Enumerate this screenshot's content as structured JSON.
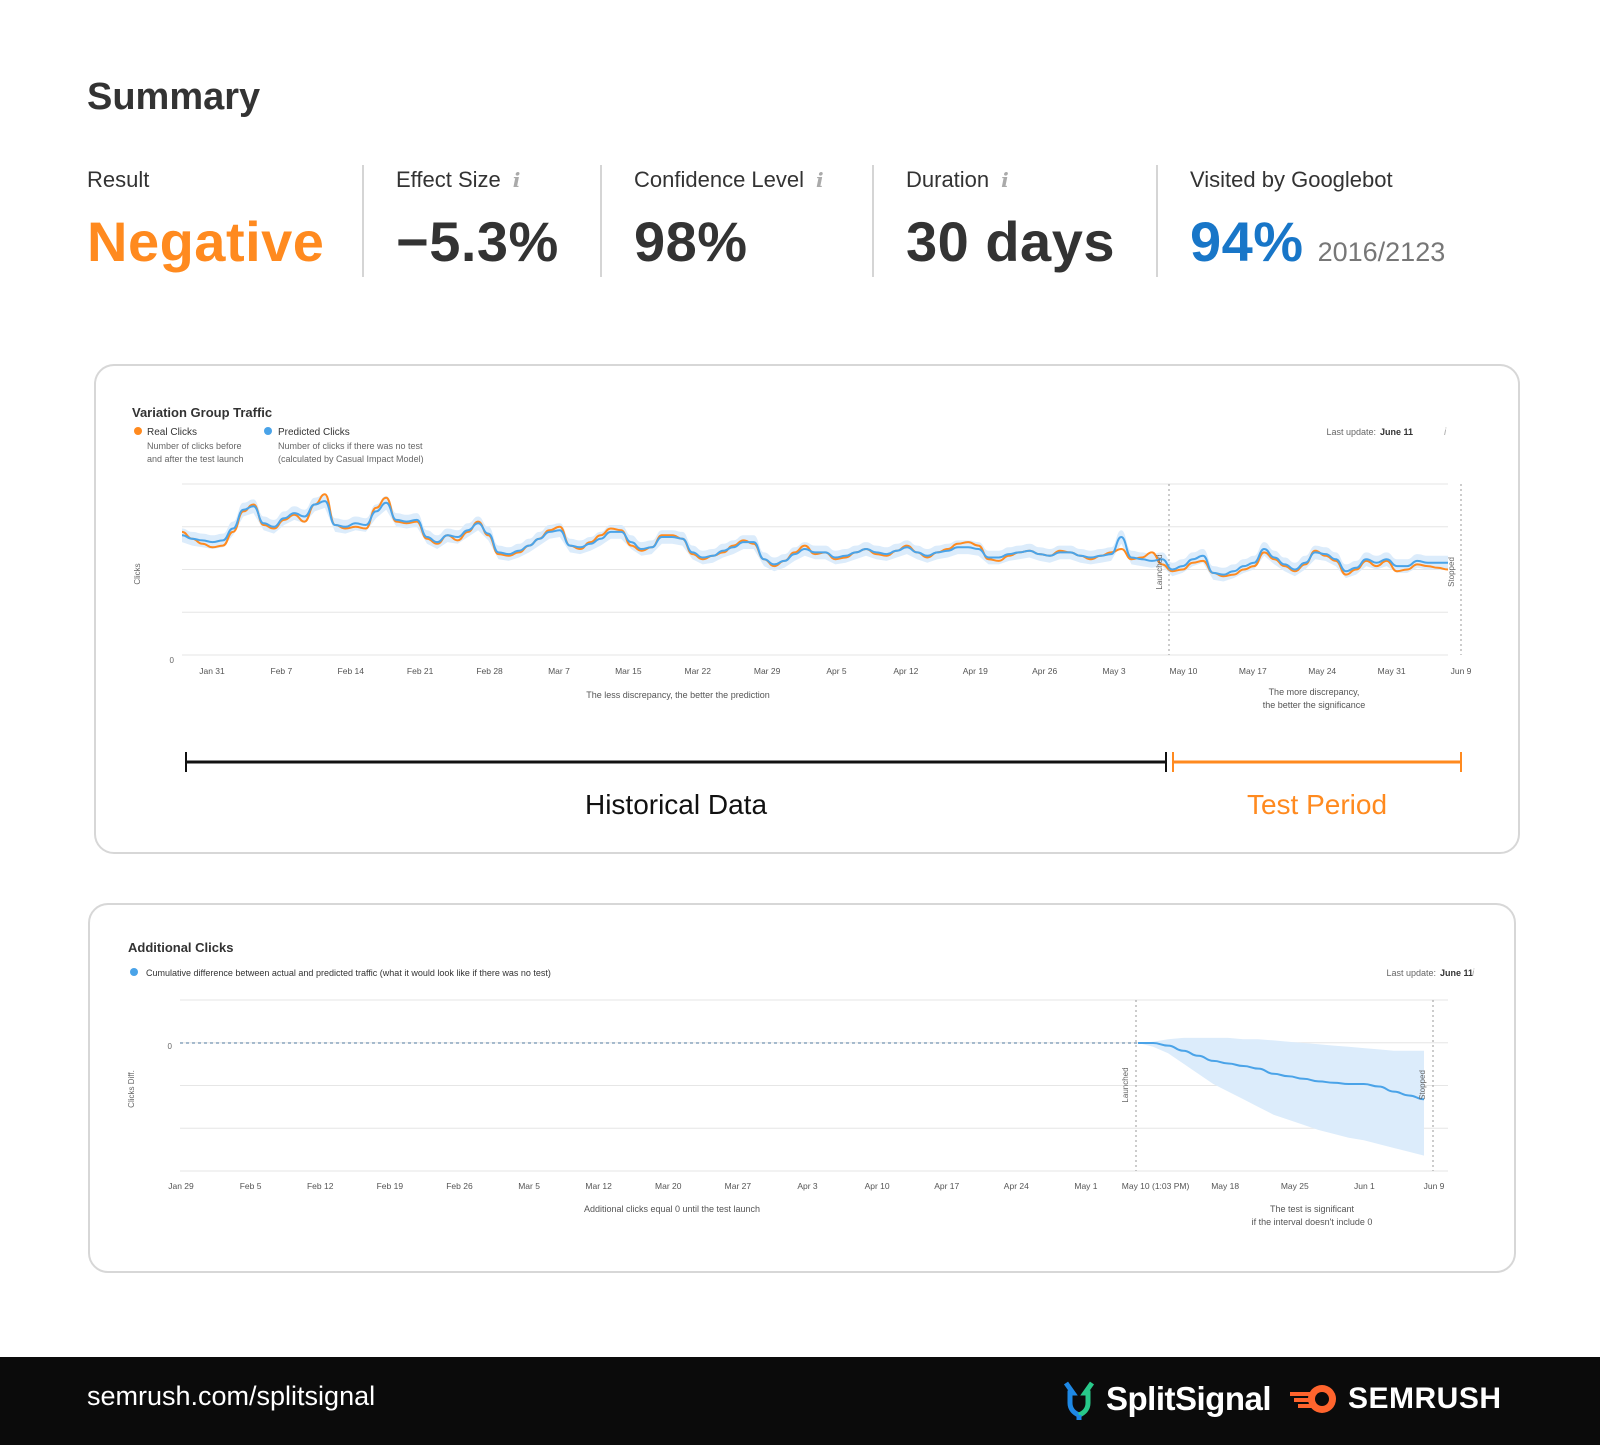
{
  "summary": {
    "title": "Summary",
    "metrics": [
      {
        "label": "Result",
        "value": "Negative",
        "info": false,
        "color": "#ff8a1f"
      },
      {
        "label": "Effect Size",
        "value": "−5.3%",
        "info": true,
        "color": "#333333"
      },
      {
        "label": "Confidence Level",
        "value": "98%",
        "info": true,
        "color": "#333333"
      },
      {
        "label": "Duration",
        "value": "30 days",
        "info": true,
        "color": "#333333"
      },
      {
        "label": "Visited by Googlebot",
        "value": "94%",
        "sub_value": "2016/2123",
        "info": false,
        "color": "#1876c8"
      }
    ],
    "info_glyph": "i"
  },
  "colors": {
    "orange": "#ff8a1f",
    "blue": "#4aa3e8",
    "band": "#dcecfb",
    "footer_bg": "#0b0b0b"
  },
  "icons": [
    "info-icon",
    "splitsignal-logo-icon",
    "semrush-logo-icon"
  ],
  "chart_data": [
    {
      "type": "line",
      "title": "Variation Group Traffic",
      "legend": [
        {
          "name": "Real Clicks",
          "desc_lines": [
            "Number of clicks before",
            "and after the test launch"
          ],
          "color": "#ff8a1f"
        },
        {
          "name": "Predicted Clicks",
          "desc_lines": [
            "Number of clicks if there was no test",
            "(calculated by Casual Impact Model)"
          ],
          "color": "#4aa3e8"
        }
      ],
      "last_update_label": "Last update:",
      "last_update_value": "June 11",
      "ylabel": "Clicks",
      "y_ticks": [
        "0"
      ],
      "x_ticks": [
        "Jan 31",
        "Feb 7",
        "Feb 14",
        "Feb 21",
        "Feb 28",
        "Mar 7",
        "Mar 15",
        "Mar 22",
        "Mar 29",
        "Apr 5",
        "Apr 12",
        "Apr 19",
        "Apr 26",
        "May 3",
        "May 10",
        "May 17",
        "May 24",
        "May 31",
        "Jun 9"
      ],
      "markers": [
        "Launched",
        "Stopped"
      ],
      "notes": [
        "The less discrepancy, the better the prediction",
        "The more discrepancy,",
        "the better the significance"
      ],
      "ylim": [
        0,
        100
      ],
      "series": [
        {
          "name": "Real Clicks",
          "values": [
            72,
            68,
            65,
            63,
            64,
            72,
            84,
            88,
            76,
            74,
            79,
            82,
            78,
            88,
            94,
            76,
            74,
            75,
            74,
            86,
            92,
            78,
            77,
            78,
            68,
            65,
            70,
            67,
            72,
            78,
            70,
            59,
            58,
            60,
            64,
            68,
            73,
            75,
            64,
            62,
            66,
            70,
            74,
            73,
            64,
            61,
            63,
            70,
            70,
            68,
            59,
            56,
            58,
            60,
            64,
            67,
            65,
            56,
            52,
            55,
            60,
            64,
            59,
            60,
            56,
            57,
            60,
            62,
            59,
            58,
            61,
            64,
            60,
            57,
            60,
            62,
            65,
            66,
            64,
            56,
            55,
            58,
            60,
            61,
            59,
            58,
            61,
            60,
            58,
            56,
            58,
            60,
            62,
            56,
            57,
            60,
            53,
            49,
            50,
            54,
            55,
            48,
            46,
            47,
            50,
            52,
            60,
            56,
            52,
            49,
            53,
            61,
            58,
            55,
            47,
            50,
            55,
            52,
            55,
            49,
            50,
            53,
            52,
            51,
            50
          ]
        },
        {
          "name": "Predicted Clicks",
          "values": [
            70,
            68,
            67,
            66,
            67,
            74,
            85,
            87,
            77,
            75,
            80,
            83,
            81,
            88,
            90,
            76,
            75,
            77,
            76,
            84,
            89,
            79,
            78,
            79,
            69,
            66,
            70,
            69,
            73,
            77,
            71,
            60,
            59,
            61,
            64,
            68,
            72,
            73,
            64,
            63,
            65,
            68,
            72,
            72,
            66,
            62,
            63,
            69,
            69,
            68,
            60,
            57,
            58,
            61,
            63,
            66,
            66,
            56,
            53,
            55,
            59,
            62,
            60,
            60,
            57,
            58,
            60,
            62,
            60,
            59,
            61,
            63,
            60,
            58,
            60,
            61,
            63,
            63,
            62,
            57,
            57,
            59,
            60,
            61,
            59,
            58,
            60,
            60,
            58,
            57,
            58,
            59,
            69,
            57,
            56,
            55,
            56,
            50,
            52,
            56,
            58,
            48,
            47,
            49,
            52,
            54,
            62,
            57,
            53,
            50,
            54,
            60,
            59,
            56,
            49,
            51,
            56,
            54,
            56,
            52,
            52,
            55,
            54,
            54,
            54
          ]
        }
      ]
    },
    {
      "type": "area",
      "title": "Additional Clicks",
      "legend": [
        {
          "name": "Cumulative difference between actual and predicted traffic (what it would look like if there was no test)",
          "color": "#4aa3e8"
        }
      ],
      "last_update_label": "Last update:",
      "last_update_value": "June 11",
      "ylabel": "Clicks Diff.",
      "y_ticks": [
        "0"
      ],
      "x_ticks": [
        "Jan 29",
        "Feb 5",
        "Feb 12",
        "Feb 19",
        "Feb 26",
        "Mar 5",
        "Mar 12",
        "Mar 20",
        "Mar 27",
        "Apr 3",
        "Apr 10",
        "Apr 17",
        "Apr 24",
        "May 1",
        "May 10 (1:03 PM)",
        "May 18",
        "May 25",
        "Jun 1",
        "Jun 9"
      ],
      "markers": [
        "Launched",
        "Stopped"
      ],
      "notes": [
        "Additional clicks equal 0 until the test launch",
        "The test is significant",
        "if the interval doesn't include 0"
      ],
      "ylim": [
        -100,
        30
      ],
      "series": [
        {
          "name": "Cumulative difference",
          "values": [
            0,
            0,
            -2,
            -6,
            -10,
            -14,
            -16,
            -18,
            -20,
            -24,
            -26,
            -28,
            -30,
            -31,
            -32,
            -32,
            -34,
            -38,
            -41,
            -44
          ],
          "lower": [
            0,
            -3,
            -8,
            -16,
            -24,
            -32,
            -38,
            -44,
            -50,
            -56,
            -60,
            -64,
            -68,
            -71,
            -74,
            -76,
            -79,
            -82,
            -85,
            -88
          ],
          "upper": [
            0,
            1,
            3,
            4,
            4,
            4,
            4,
            3,
            3,
            2,
            1,
            0,
            -1,
            -2,
            -3,
            -4,
            -5,
            -6,
            -6,
            -6
          ]
        }
      ]
    }
  ],
  "annotations": {
    "historical_label": "Historical Data",
    "test_label": "Test Period"
  },
  "footer": {
    "link": "semrush.com/splitsignal",
    "brand1": "SplitSignal",
    "brand2": "SEMRUSH"
  }
}
